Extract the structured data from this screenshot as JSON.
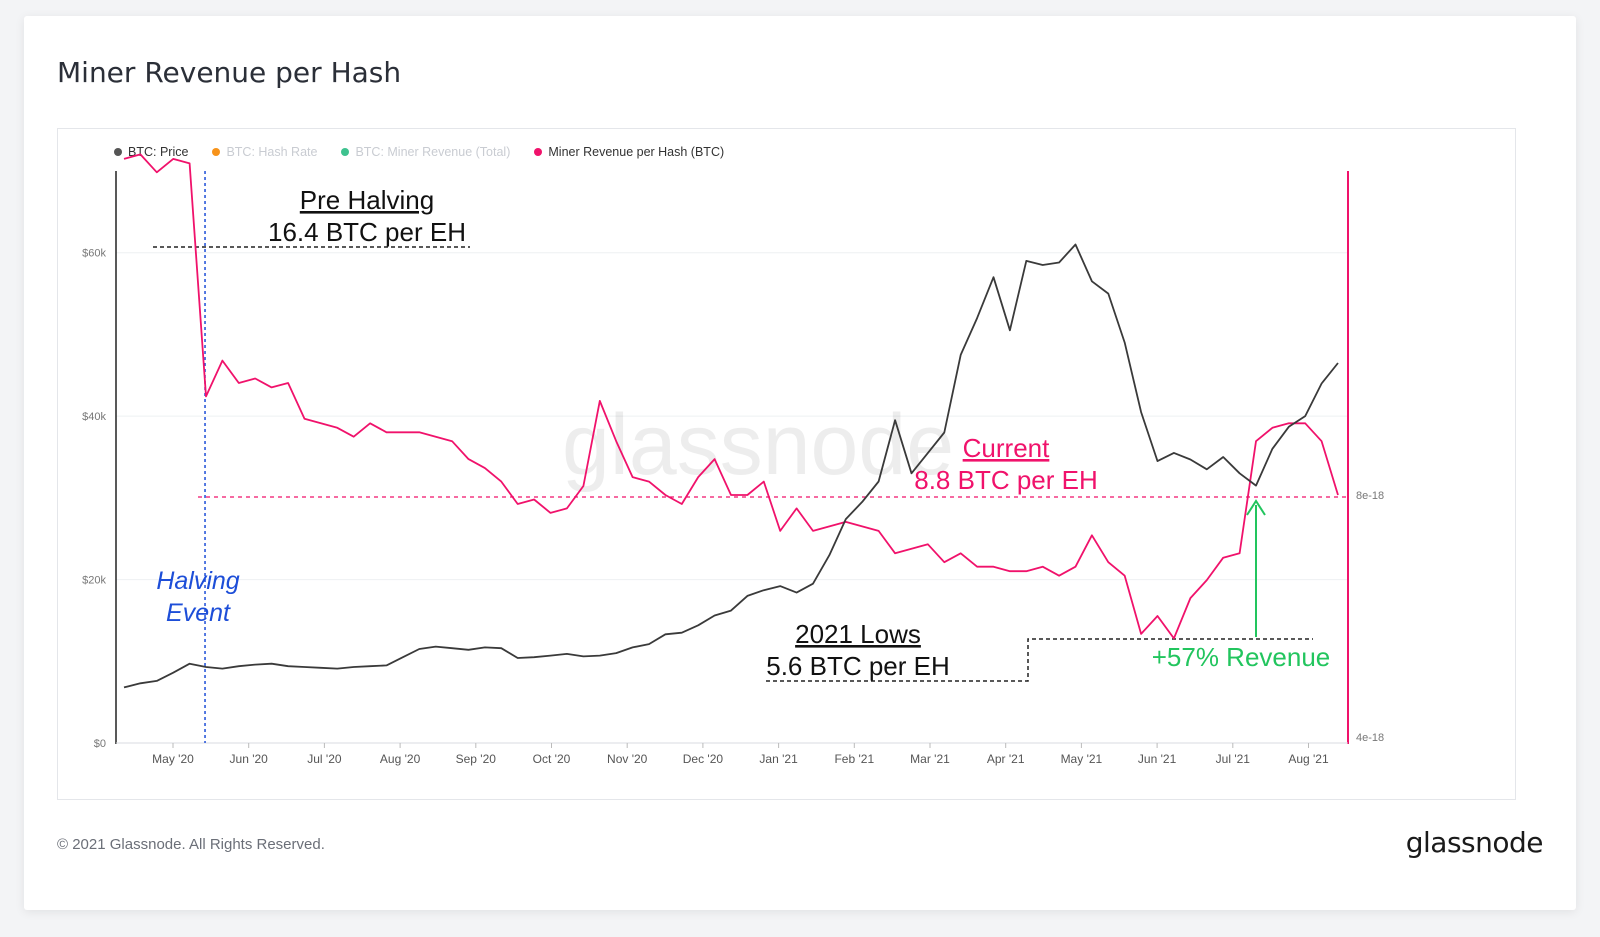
{
  "title": "Miner Revenue per Hash",
  "legend": [
    {
      "label": "BTC: Price",
      "color": "#555555",
      "faded": false
    },
    {
      "label": "BTC: Hash Rate",
      "color": "#f7931a",
      "faded": true
    },
    {
      "label": "BTC: Miner Revenue (Total)",
      "color": "#3ec28f",
      "faded": true
    },
    {
      "label": "Miner Revenue per Hash (BTC)",
      "color": "#f0126b",
      "faded": false
    }
  ],
  "footer": "© 2021 Glassnode. All Rights Reserved.",
  "brand": "glassnode",
  "watermark": "glassnode",
  "colors": {
    "price": "#3a3a3a",
    "revenue": "#f0126b",
    "halving": "#1d4ed8",
    "increase": "#22c55e"
  },
  "annotations": {
    "pre_halving_title": "Pre Halving",
    "pre_halving_value": "16.4 BTC per EH",
    "halving_1": "Halving",
    "halving_2": "Event",
    "current_title": "Current",
    "current_value": "8.8 BTC per EH",
    "lows_title": "2021 Lows",
    "lows_value": "5.6 BTC per EH",
    "increase": "+57% Revenue"
  },
  "chart_data": {
    "type": "line",
    "x_ticks": [
      "May '20",
      "Jun '20",
      "Jul '20",
      "Aug '20",
      "Sep '20",
      "Oct '20",
      "Nov '20",
      "Dec '20",
      "Jan '21",
      "Feb '21",
      "Mar '21",
      "Apr '21",
      "May '21",
      "Jun '21",
      "Jul '21",
      "Aug '21"
    ],
    "y_left_ticks": [
      "$0",
      "$20k",
      "$40k",
      "$60k"
    ],
    "y_left_range": [
      0,
      70000
    ],
    "y_right_ticks": [
      "4e-18",
      "8e-18"
    ],
    "halving_index": 5,
    "current_index": 66,
    "series": [
      {
        "name": "BTC: Price",
        "unit": "USD",
        "values": [
          6800,
          7300,
          7600,
          8600,
          9700,
          9300,
          9100,
          9400,
          9600,
          9700,
          9400,
          9300,
          9200,
          9100,
          9300,
          9400,
          9500,
          10500,
          11500,
          11800,
          11600,
          11400,
          11700,
          11600,
          10400,
          10500,
          10700,
          10900,
          10600,
          10700,
          11000,
          11700,
          12100,
          13300,
          13500,
          14400,
          15600,
          16200,
          18000,
          18700,
          19200,
          18400,
          19500,
          23000,
          27400,
          29500,
          32000,
          39500,
          33000,
          35500,
          38000,
          47500,
          52000,
          57000,
          50500,
          59000,
          58500,
          58800,
          61000,
          56500,
          55000,
          49000,
          40500,
          34500,
          35500,
          34700,
          33500,
          35000,
          33000,
          31500,
          36000,
          38700,
          40000,
          44000,
          46500
        ]
      },
      {
        "name": "Miner Revenue per Hash (BTC)",
        "unit": "BTC per EH",
        "values": [
          16.3,
          16.4,
          16.0,
          16.3,
          16.2,
          11.0,
          11.8,
          11.3,
          11.4,
          11.2,
          11.3,
          10.5,
          10.4,
          10.3,
          10.1,
          10.4,
          10.2,
          10.2,
          10.2,
          10.1,
          10.0,
          9.6,
          9.4,
          9.1,
          8.6,
          8.7,
          8.4,
          8.5,
          9.0,
          10.9,
          10.0,
          9.2,
          9.1,
          8.8,
          8.6,
          9.2,
          9.6,
          8.8,
          8.8,
          9.1,
          8.0,
          8.5,
          8.0,
          8.1,
          8.2,
          8.1,
          8.0,
          7.5,
          7.6,
          7.7,
          7.3,
          7.5,
          7.2,
          7.2,
          7.1,
          7.1,
          7.2,
          7.0,
          7.2,
          7.9,
          7.3,
          7.0,
          5.7,
          6.1,
          5.6,
          6.5,
          6.9,
          7.4,
          7.5,
          10.0,
          10.3,
          10.4,
          10.4,
          10.0,
          8.8
        ]
      }
    ]
  }
}
